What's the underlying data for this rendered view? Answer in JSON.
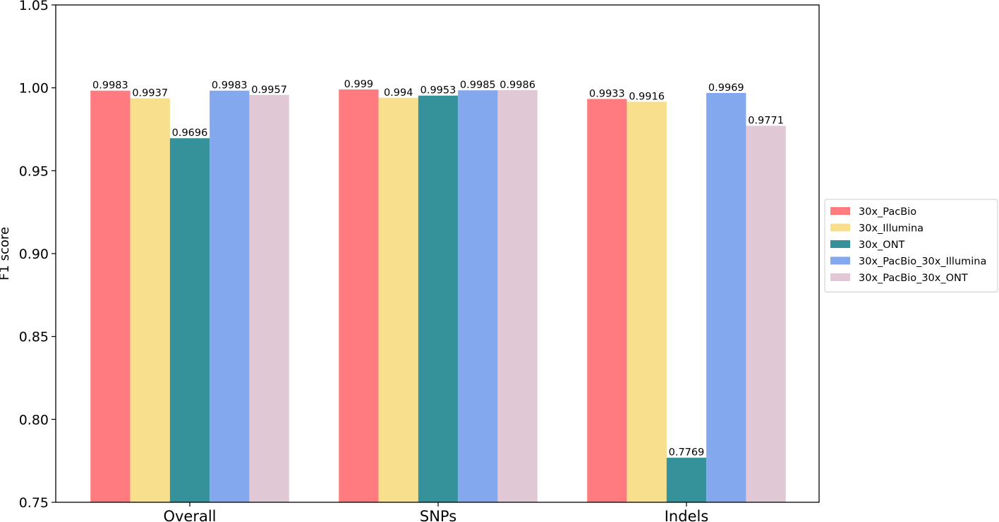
{
  "chart_data": {
    "type": "bar",
    "categories": [
      "Overall",
      "SNPs",
      "Indels"
    ],
    "series": [
      {
        "name": "30x_PacBio",
        "color": "#ff7b7f",
        "values": [
          0.9983,
          0.999,
          0.9933
        ],
        "labels": [
          "0.9983",
          "0.999",
          "0.9933"
        ]
      },
      {
        "name": "30x_Illumina",
        "color": "#f7df8d",
        "values": [
          0.9937,
          0.994,
          0.9916
        ],
        "labels": [
          "0.9937",
          "0.994",
          "0.9916"
        ]
      },
      {
        "name": "30x_ONT",
        "color": "#35929a",
        "values": [
          0.9696,
          0.9953,
          0.7769
        ],
        "labels": [
          "0.9696",
          "0.9953",
          "0.7769"
        ]
      },
      {
        "name": "30x_PacBio_30x_Illumina",
        "color": "#84a8ee",
        "values": [
          0.9983,
          0.9985,
          0.9969
        ],
        "labels": [
          "0.9983",
          "0.9985",
          "0.9969"
        ]
      },
      {
        "name": "30x_PacBio_30x_ONT",
        "color": "#e0c8d5",
        "values": [
          0.9957,
          0.9986,
          0.9771
        ],
        "labels": [
          "0.9957",
          "0.9986",
          "0.9771"
        ]
      }
    ],
    "xlabel": "",
    "ylabel": "F1 score",
    "ylim": [
      0.75,
      1.05
    ],
    "yticks": [
      0.75,
      0.8,
      0.85,
      0.9,
      0.95,
      1.0,
      1.05
    ],
    "ytick_labels": [
      "0.75",
      "0.80",
      "0.85",
      "0.90",
      "0.95",
      "1.00",
      "1.05"
    ],
    "grid": false,
    "legend_position": "right"
  }
}
